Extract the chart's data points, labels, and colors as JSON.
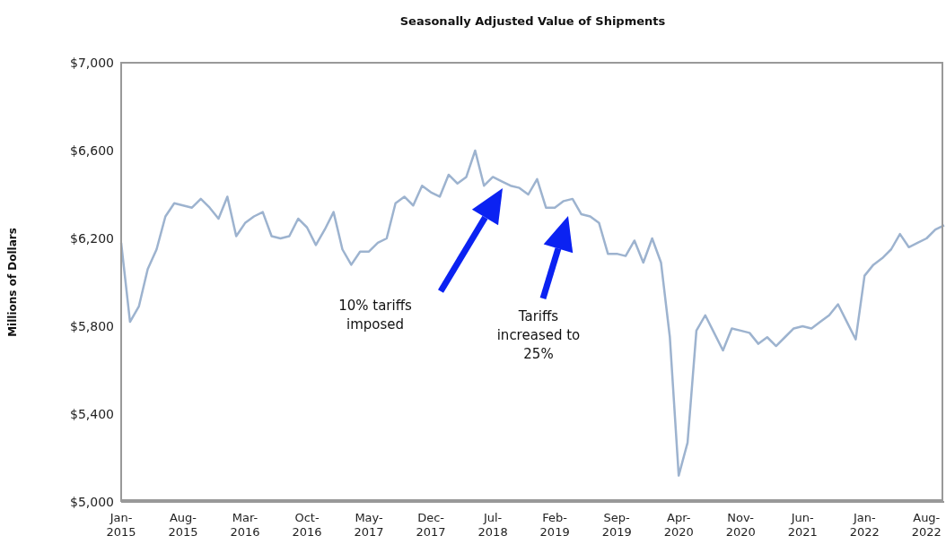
{
  "chart_data": {
    "type": "line",
    "title": "Seasonally Adjusted Value of Shipments",
    "ylabel": "Millions of Dollars",
    "categories": [
      "Jan-2015",
      null,
      null,
      null,
      null,
      null,
      null,
      "Aug-2015",
      null,
      null,
      null,
      null,
      null,
      null,
      "Mar-2016",
      null,
      null,
      null,
      null,
      null,
      null,
      "Oct-2016",
      null,
      null,
      null,
      null,
      null,
      null,
      "May-2017",
      null,
      null,
      null,
      null,
      null,
      null,
      "Dec-2017",
      null,
      null,
      null,
      null,
      null,
      null,
      "Jul-2018",
      null,
      null,
      null,
      null,
      null,
      null,
      "Feb-2019",
      null,
      null,
      null,
      null,
      null,
      null,
      "Sep-2019",
      null,
      null,
      null,
      null,
      null,
      null,
      "Apr-2020",
      null,
      null,
      null,
      null,
      null,
      null,
      "Nov-2020",
      null,
      null,
      null,
      null,
      null,
      null,
      "Jun-2021",
      null,
      null,
      null,
      null,
      null,
      null,
      "Jan-2022",
      null,
      null,
      null,
      null,
      null,
      null,
      "Aug-2022",
      null,
      null
    ],
    "series": [
      {
        "color": "#9db3cf",
        "values": [
          6180,
          5820,
          5890,
          6060,
          6150,
          6300,
          6360,
          6350,
          6340,
          6380,
          6340,
          6290,
          6390,
          6210,
          6270,
          6300,
          6320,
          6210,
          6200,
          6210,
          6290,
          6250,
          6170,
          6240,
          6320,
          6150,
          6080,
          6140,
          6140,
          6180,
          6200,
          6360,
          6390,
          6350,
          6440,
          6410,
          6390,
          6490,
          6450,
          6480,
          6600,
          6440,
          6480,
          6460,
          6440,
          6430,
          6400,
          6470,
          6340,
          6340,
          6370,
          6380,
          6310,
          6300,
          6270,
          6130,
          6130,
          6120,
          6190,
          6090,
          6200,
          6090,
          5750,
          5120,
          5270,
          5780,
          5850,
          5770,
          5690,
          5790,
          5780,
          5770,
          5720,
          5750,
          5710,
          5750,
          5790,
          5800,
          5790,
          5820,
          5850,
          5900,
          5820,
          5740,
          6030,
          6080,
          6110,
          6150,
          6220,
          6160,
          6180,
          6200,
          6240,
          6260
        ]
      }
    ],
    "ylim": [
      5000,
      7000
    ],
    "yticks": [
      {
        "value": 5000,
        "label": "$5,000"
      },
      {
        "value": 5400,
        "label": "$5,400"
      },
      {
        "value": 5800,
        "label": "$5,800"
      },
      {
        "value": 6200,
        "label": "$6,200"
      },
      {
        "value": 6600,
        "label": "$6,600"
      },
      {
        "value": 7000,
        "label": "$7,000"
      }
    ],
    "annotations": [
      "10% tariffs imposed",
      "Tariffs increased to 25%"
    ],
    "grid": false,
    "marker": "none",
    "line_style": "solid"
  }
}
